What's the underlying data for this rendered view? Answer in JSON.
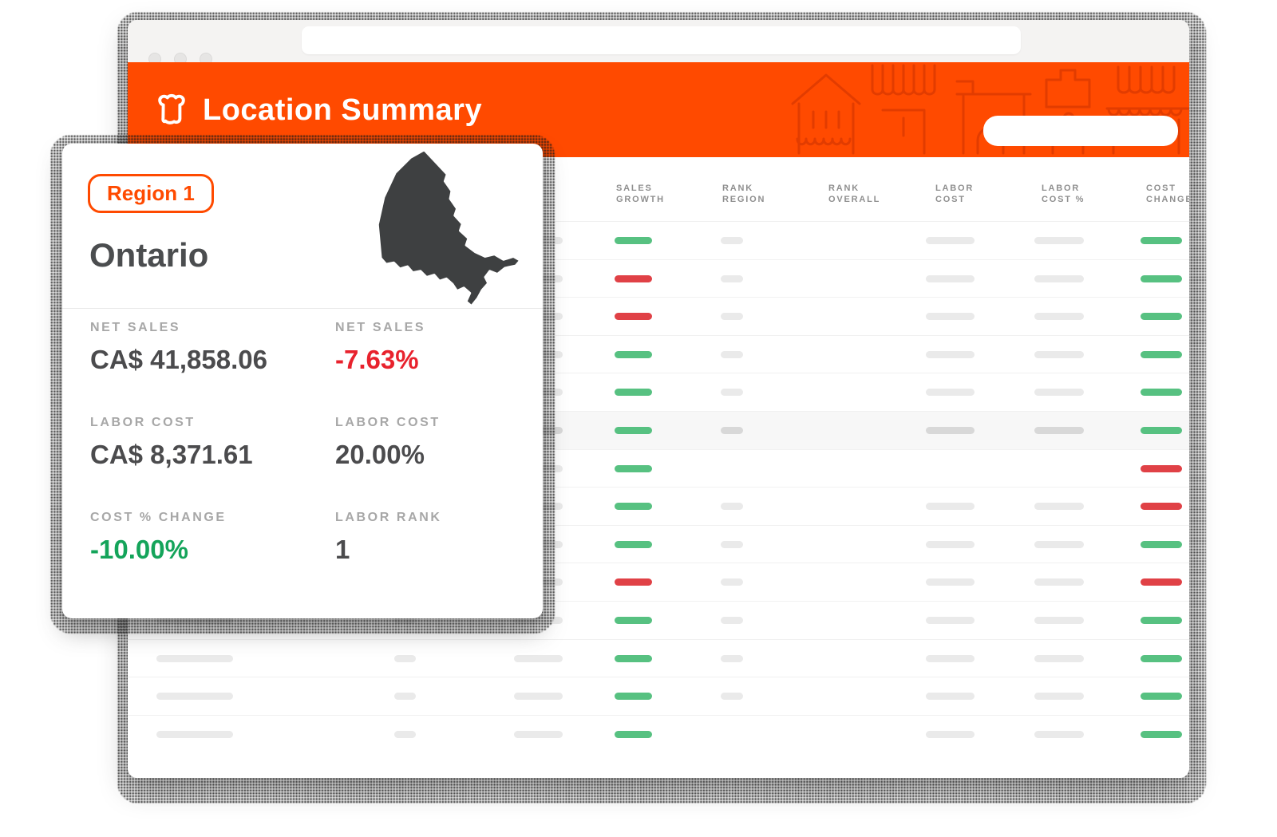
{
  "window": {
    "controls": [
      "close",
      "minimize",
      "maximize"
    ],
    "address_value": ""
  },
  "header": {
    "title": "Location Summary",
    "logo": "toast-bread-icon",
    "search_value": ""
  },
  "card": {
    "badge": "Region 1",
    "region": "Ontario",
    "map": "ontario-province-silhouette",
    "stats": [
      {
        "label": "NET SALES",
        "value": "CA$ 41,858.06",
        "tone": "dark"
      },
      {
        "label": "NET SALES",
        "value": "-7.63%",
        "tone": "red"
      },
      {
        "label": "LABOR COST",
        "value": "CA$ 8,371.61",
        "tone": "dark"
      },
      {
        "label": "LABOR COST",
        "value": "20.00%",
        "tone": "dark"
      },
      {
        "label": "COST % CHANGE",
        "value": "-10.00%",
        "tone": "green"
      },
      {
        "label": "LABOR RANK",
        "value": "1",
        "tone": "dark"
      }
    ]
  },
  "table": {
    "columns": [
      {
        "id": "sales_growth",
        "label": "SALES GROWTH"
      },
      {
        "id": "rank_region",
        "label": "RANK REGION"
      },
      {
        "id": "rank_overall",
        "label": "RANK OVERALL"
      },
      {
        "id": "labor_cost",
        "label": "LABOR COST"
      },
      {
        "id": "labor_cost_pct",
        "label": "LABOR COST %"
      },
      {
        "id": "cost_change",
        "label": "COST CHANGE"
      }
    ],
    "rows": [
      {
        "highlighted": false,
        "sales_growth": "up",
        "rank_region": true,
        "labor_cost": true,
        "labor_cost_pct": true,
        "cost_change": "up"
      },
      {
        "highlighted": false,
        "sales_growth": "down",
        "rank_region": true,
        "labor_cost": true,
        "labor_cost_pct": true,
        "cost_change": "up"
      },
      {
        "highlighted": false,
        "sales_growth": "down",
        "rank_region": true,
        "labor_cost": true,
        "labor_cost_pct": true,
        "cost_change": "up"
      },
      {
        "highlighted": false,
        "sales_growth": "up",
        "rank_region": true,
        "labor_cost": true,
        "labor_cost_pct": true,
        "cost_change": "up"
      },
      {
        "highlighted": false,
        "sales_growth": "up",
        "rank_region": true,
        "labor_cost": true,
        "labor_cost_pct": true,
        "cost_change": "up"
      },
      {
        "highlighted": true,
        "sales_growth": "up",
        "rank_region": true,
        "labor_cost": true,
        "labor_cost_pct": true,
        "cost_change": "up"
      },
      {
        "highlighted": false,
        "sales_growth": "up",
        "rank_region": false,
        "labor_cost": false,
        "labor_cost_pct": false,
        "cost_change": "down"
      },
      {
        "highlighted": false,
        "sales_growth": "up",
        "rank_region": true,
        "labor_cost": true,
        "labor_cost_pct": true,
        "cost_change": "down"
      },
      {
        "highlighted": false,
        "sales_growth": "up",
        "rank_region": true,
        "labor_cost": true,
        "labor_cost_pct": true,
        "cost_change": "up"
      },
      {
        "highlighted": false,
        "sales_growth": "down",
        "rank_region": true,
        "labor_cost": true,
        "labor_cost_pct": true,
        "cost_change": "down"
      },
      {
        "highlighted": false,
        "sales_growth": "up",
        "rank_region": true,
        "labor_cost": true,
        "labor_cost_pct": true,
        "cost_change": "up"
      },
      {
        "highlighted": false,
        "sales_growth": "up",
        "rank_region": true,
        "labor_cost": true,
        "labor_cost_pct": true,
        "cost_change": "up"
      },
      {
        "highlighted": false,
        "sales_growth": "up",
        "rank_region": true,
        "labor_cost": true,
        "labor_cost_pct": true,
        "cost_change": "up"
      },
      {
        "highlighted": false,
        "sales_growth": "up",
        "rank_region": false,
        "labor_cost": true,
        "labor_cost_pct": true,
        "cost_change": "up"
      }
    ]
  },
  "colors": {
    "accent_orange": "#FF4A00",
    "pattern_orange": "#E23C00",
    "trend_up_green": "#57C181",
    "trend_down_red": "#E04146",
    "placeholder_bar": "#EAEAEA",
    "placeholder_bar_highlight": "#D8D8D8",
    "value_red": "#E8222D",
    "value_green": "#14A45A",
    "map_gray": "#3E4041"
  }
}
